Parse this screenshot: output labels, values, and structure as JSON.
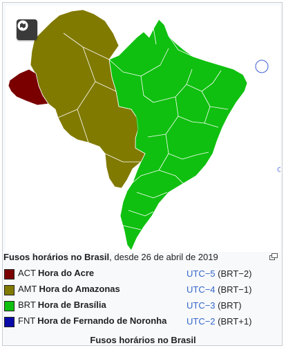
{
  "map": {
    "button_icon": "map-expand-icon",
    "colors": {
      "acre": "#7a0000",
      "amazonas": "#817a00",
      "brasilia": "#10c010",
      "noronha": "#0a0aa8",
      "borders": "#ffffff",
      "island_outline": "#3b5bd6"
    }
  },
  "caption": {
    "bold": "Fusos horários no Brasil",
    "rest": ", desde 26 de abril de 2019",
    "enlarge_icon": "enlarge-icon"
  },
  "legend": [
    {
      "color": "#7a0000",
      "abbr": "ACT",
      "name": "Hora do Acre",
      "utc": "UTC−5",
      "brt": "(BRT−2)"
    },
    {
      "color": "#817a00",
      "abbr": "AMT",
      "name": "Hora do Amazonas",
      "utc": "UTC−4",
      "brt": "(BRT−1)"
    },
    {
      "color": "#10c010",
      "abbr": "BRT",
      "name": "Hora de Brasília",
      "utc": "UTC−3",
      "brt": "(BRT)"
    },
    {
      "color": "#0a0aa8",
      "abbr": "FNT",
      "name": "Hora de Fernando de Noronha",
      "utc": "UTC−2",
      "brt": "(BRT+1)"
    }
  ],
  "table_caption": "Fusos horários no Brasil"
}
